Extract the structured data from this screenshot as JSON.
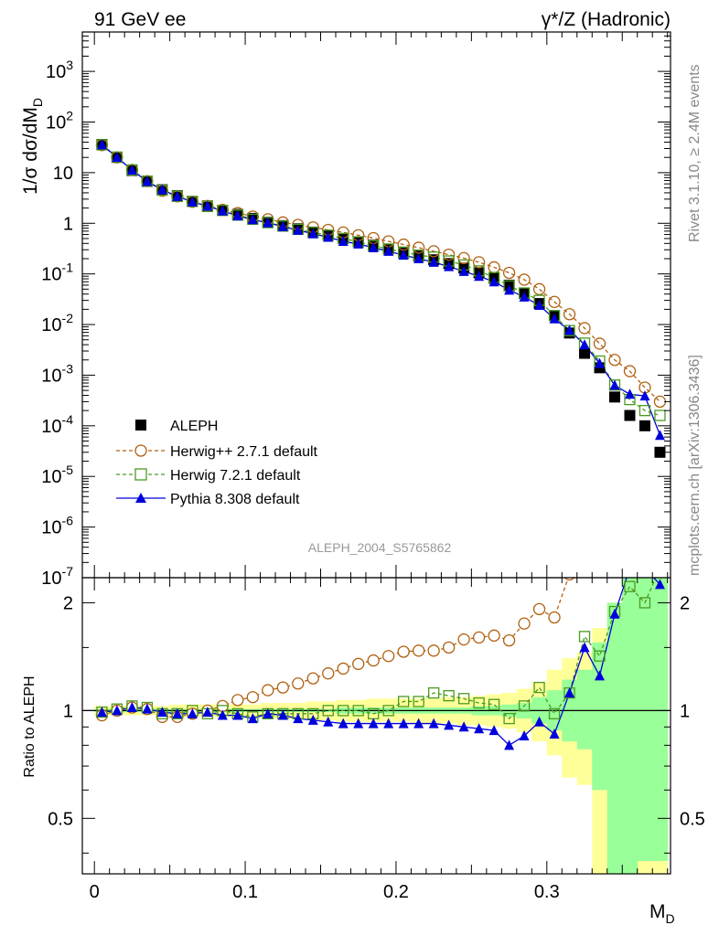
{
  "header": {
    "left": "91 GeV ee",
    "right": "γ*/Z (Hadronic)"
  },
  "side_text": {
    "rivet": "Rivet 3.1.10, ≥ 2.4M events",
    "mcplots": "mcplots.cern.ch [arXiv:1306.3436]"
  },
  "analysis_id": "ALEPH_2004_S5765862",
  "colors": {
    "data": "#000000",
    "herwigpp": "#b06010",
    "herwig72": "#4a9a20",
    "pythia": "#0000dd",
    "band_yellow": "#ffff99",
    "band_green": "#99ff99"
  },
  "chart_data": [
    {
      "type": "scatter",
      "name": "main",
      "ylabel": "1/σ dσ/dM_D",
      "yscale": "log",
      "ylim": [
        1e-07,
        6000
      ],
      "xlim": [
        -0.008,
        0.382
      ],
      "y_ticks": [
        "10^-7",
        "10^-6",
        "10^-5",
        "10^-4",
        "10^-3",
        "10^-2",
        "10^-1",
        "1",
        "10",
        "10^2",
        "10^3"
      ],
      "x": [
        0.005,
        0.015,
        0.025,
        0.035,
        0.045,
        0.055,
        0.065,
        0.075,
        0.085,
        0.095,
        0.105,
        0.115,
        0.125,
        0.135,
        0.145,
        0.155,
        0.165,
        0.175,
        0.185,
        0.195,
        0.205,
        0.215,
        0.225,
        0.235,
        0.245,
        0.255,
        0.265,
        0.275,
        0.285,
        0.295,
        0.305,
        0.315,
        0.325,
        0.335,
        0.345,
        0.355,
        0.365,
        0.375
      ],
      "series": [
        {
          "name": "ALEPH",
          "marker": "filled-square",
          "values": [
            36,
            20,
            11,
            6.7,
            4.6,
            3.5,
            2.7,
            2.2,
            1.8,
            1.5,
            1.25,
            1.05,
            0.9,
            0.78,
            0.67,
            0.58,
            0.5,
            0.43,
            0.37,
            0.31,
            0.26,
            0.225,
            0.19,
            0.16,
            0.13,
            0.105,
            0.082,
            0.06,
            0.041,
            0.026,
            0.015,
            0.0068,
            0.0027,
            0.0014,
            0.00037,
            0.00016,
            0.0001,
            3e-05
          ]
        },
        {
          "name": "Herwig++ 2.7.1 default",
          "marker": "open-circle",
          "line": "dashed",
          "values": [
            35,
            20,
            11.3,
            6.8,
            4.4,
            3.4,
            2.65,
            2.2,
            1.85,
            1.6,
            1.36,
            1.2,
            1.04,
            0.93,
            0.83,
            0.74,
            0.66,
            0.58,
            0.51,
            0.44,
            0.38,
            0.33,
            0.28,
            0.24,
            0.205,
            0.17,
            0.135,
            0.105,
            0.077,
            0.05,
            0.028,
            0.016,
            0.0085,
            0.0042,
            0.002,
            0.0012,
            0.00057,
            0.0003
          ]
        },
        {
          "name": "Herwig 7.2.1 default",
          "marker": "open-square",
          "line": "dashed",
          "values": [
            35.5,
            20.3,
            11.3,
            6.8,
            4.5,
            3.4,
            2.7,
            2.15,
            1.8,
            1.45,
            1.2,
            1.03,
            0.88,
            0.76,
            0.66,
            0.58,
            0.5,
            0.43,
            0.36,
            0.31,
            0.27,
            0.235,
            0.215,
            0.18,
            0.15,
            0.115,
            0.085,
            0.058,
            0.042,
            0.03,
            0.015,
            0.0076,
            0.0043,
            0.0019,
            0.00064,
            0.00033,
            0.0002,
            0.00016
          ]
        },
        {
          "name": "Pythia 8.308 default",
          "marker": "filled-triangle",
          "line": "solid",
          "values": [
            35.5,
            20.1,
            11.2,
            6.7,
            4.6,
            3.4,
            2.65,
            2.18,
            1.75,
            1.4,
            1.18,
            1.02,
            0.86,
            0.73,
            0.62,
            0.53,
            0.44,
            0.39,
            0.33,
            0.28,
            0.235,
            0.2,
            0.17,
            0.14,
            0.112,
            0.09,
            0.07,
            0.048,
            0.035,
            0.024,
            0.013,
            0.0077,
            0.004,
            0.0017,
            0.00063,
            0.00042,
            0.00039,
            6.5e-05
          ]
        }
      ]
    },
    {
      "type": "line",
      "name": "ratio",
      "ylabel": "Ratio to ALEPH",
      "xlabel": "M_D",
      "yscale": "log",
      "ylim": [
        0.35,
        2.35
      ],
      "x_ticks": [
        "0",
        "0.1",
        "0.2",
        "0.3"
      ],
      "y_ticks": [
        "0.5",
        "1",
        "2"
      ],
      "band_yellow_lo": [
        0.97,
        0.97,
        0.97,
        0.97,
        0.97,
        0.96,
        0.96,
        0.96,
        0.96,
        0.96,
        0.96,
        0.95,
        0.95,
        0.95,
        0.94,
        0.94,
        0.93,
        0.93,
        0.93,
        0.93,
        0.93,
        0.92,
        0.92,
        0.92,
        0.91,
        0.91,
        0.9,
        0.89,
        0.87,
        0.82,
        0.75,
        0.65,
        0.62,
        0.3,
        0.3,
        0.3,
        0.3,
        0.3
      ],
      "band_yellow_hi": [
        1.03,
        1.03,
        1.03,
        1.03,
        1.03,
        1.04,
        1.04,
        1.04,
        1.04,
        1.04,
        1.04,
        1.05,
        1.05,
        1.05,
        1.06,
        1.06,
        1.07,
        1.07,
        1.08,
        1.08,
        1.08,
        1.08,
        1.08,
        1.09,
        1.09,
        1.1,
        1.11,
        1.12,
        1.15,
        1.2,
        1.3,
        1.4,
        1.45,
        1.7,
        2.0,
        2.5,
        2.5,
        2.5
      ],
      "band_green_lo": [
        0.99,
        0.99,
        0.99,
        0.99,
        0.99,
        0.99,
        0.99,
        0.99,
        0.99,
        0.99,
        0.99,
        0.99,
        0.99,
        0.99,
        0.99,
        0.99,
        0.98,
        0.98,
        0.98,
        0.98,
        0.98,
        0.98,
        0.98,
        0.98,
        0.98,
        0.97,
        0.97,
        0.96,
        0.95,
        0.92,
        0.88,
        0.82,
        0.78,
        0.6,
        0.3,
        0.3,
        0.38,
        0.38
      ],
      "band_green_hi": [
        1.01,
        1.01,
        1.01,
        1.01,
        1.01,
        1.01,
        1.01,
        1.01,
        1.01,
        1.01,
        1.01,
        1.01,
        1.01,
        1.01,
        1.01,
        1.01,
        1.02,
        1.02,
        1.02,
        1.02,
        1.02,
        1.02,
        1.02,
        1.02,
        1.02,
        1.03,
        1.03,
        1.04,
        1.05,
        1.09,
        1.14,
        1.22,
        1.3,
        1.55,
        2.0,
        2.5,
        2.5,
        2.5
      ],
      "series": [
        {
          "name": "Herwig++ 2.7.1 default",
          "values": [
            0.97,
            1.0,
            1.02,
            1.01,
            0.96,
            0.96,
            0.98,
            1.0,
            1.03,
            1.07,
            1.09,
            1.14,
            1.16,
            1.19,
            1.23,
            1.27,
            1.31,
            1.35,
            1.38,
            1.42,
            1.46,
            1.47,
            1.47,
            1.5,
            1.58,
            1.6,
            1.62,
            1.57,
            1.75,
            1.92,
            1.82,
            2.4,
            2.5,
            2.5,
            2.5,
            2.5,
            2.5,
            2.5
          ]
        },
        {
          "name": "Herwig 7.2.1 default",
          "values": [
            0.99,
            1.01,
            1.03,
            1.02,
            0.98,
            0.98,
            1.0,
            0.98,
            1.0,
            0.98,
            0.96,
            0.98,
            0.98,
            0.98,
            0.98,
            1.0,
            1.0,
            1.0,
            0.98,
            1.0,
            1.06,
            1.06,
            1.12,
            1.1,
            1.08,
            1.05,
            1.04,
            0.95,
            1.03,
            1.16,
            0.98,
            1.12,
            1.61,
            1.42,
            1.89,
            2.22,
            2.0,
            2.5
          ]
        },
        {
          "name": "Pythia 8.308 default",
          "values": [
            0.99,
            1.0,
            1.02,
            1.01,
            0.99,
            0.98,
            0.98,
            0.99,
            0.97,
            0.97,
            0.95,
            0.98,
            0.97,
            0.95,
            0.94,
            0.93,
            0.92,
            0.92,
            0.92,
            0.92,
            0.92,
            0.92,
            0.92,
            0.91,
            0.9,
            0.89,
            0.88,
            0.8,
            0.85,
            0.93,
            0.86,
            1.12,
            1.5,
            1.25,
            1.86,
            2.5,
            2.5,
            2.25
          ]
        }
      ]
    }
  ]
}
